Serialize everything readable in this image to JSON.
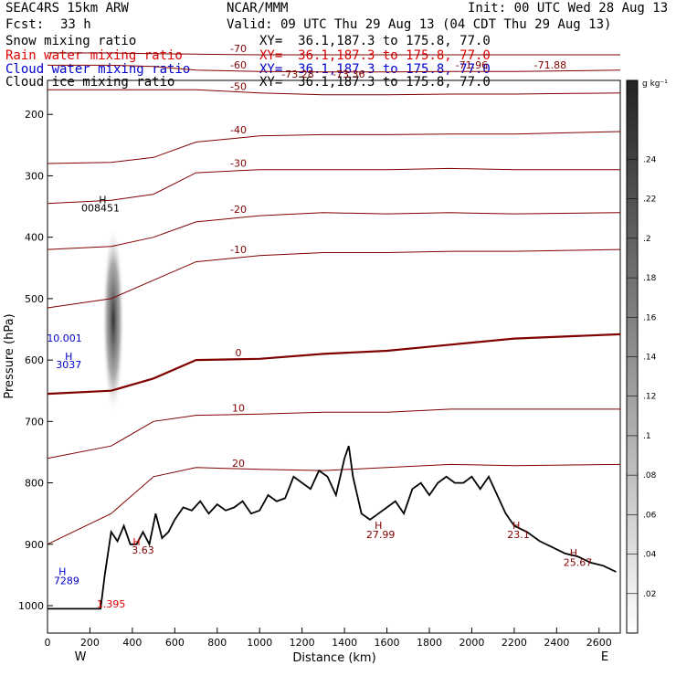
{
  "header": {
    "model": "SEAC4RS 15km ARW",
    "org": "NCAR/MMM",
    "init": "Init: 00 UTC Wed 28 Aug 13",
    "fcst_label": "Fcst:",
    "fcst_value": "33 h",
    "valid": "Valid: 09 UTC Thu 29 Aug 13 (04 CDT Thu 29 Aug 13)"
  },
  "fields": [
    {
      "name": "Snow mixing ratio",
      "xy": "XY=  36.1,187.3 to 175.8, 77.0",
      "color": "#000000"
    },
    {
      "name": "Rain water mixing ratio",
      "xy": "XY=  36.1,187.3 to 175.8, 77.0",
      "color": "#e00000"
    },
    {
      "name": "Cloud water mixing ratio",
      "xy": "XY=  36.1,187.3 to 175.8, 77.0",
      "color": "#0000cc"
    },
    {
      "name": "Cloud ice mixing ratio",
      "xy": "XY=  36.1,187.3 to 175.8, 77.0",
      "color": "#000000"
    }
  ],
  "colorbar": {
    "unit": "g kg⁻¹",
    "ticks": [
      ".02",
      ".04",
      ".06",
      ".08",
      ".1",
      ".12",
      ".14",
      ".16",
      ".18",
      ".2",
      ".22",
      ".24"
    ],
    "range": [
      0,
      0.28
    ]
  },
  "chart_data": {
    "type": "line",
    "xlabel": "Distance (km)",
    "ylabel": "Pressure (hPa)",
    "xlim": [
      0,
      2700
    ],
    "ylim": [
      1000,
      100
    ],
    "x_ticks": [
      0,
      200,
      400,
      600,
      800,
      1000,
      1200,
      1400,
      1600,
      1800,
      2000,
      2200,
      2400,
      2600
    ],
    "y_ticks": [
      200,
      300,
      400,
      500,
      600,
      700,
      800,
      900,
      1000
    ],
    "endpoints": {
      "left": "W",
      "right": "E"
    },
    "terrain": {
      "color": "#000000",
      "x": [
        0,
        250,
        270,
        300,
        330,
        360,
        390,
        420,
        450,
        480,
        510,
        540,
        570,
        600,
        640,
        680,
        720,
        760,
        800,
        840,
        880,
        920,
        960,
        1000,
        1040,
        1080,
        1120,
        1160,
        1200,
        1240,
        1280,
        1320,
        1360,
        1400,
        1420,
        1440,
        1480,
        1520,
        1560,
        1600,
        1640,
        1680,
        1720,
        1760,
        1800,
        1840,
        1880,
        1920,
        1960,
        2000,
        2040,
        2080,
        2120,
        2160,
        2200,
        2260,
        2320,
        2380,
        2440,
        2500,
        2560,
        2620,
        2680
      ],
      "p": [
        1005,
        1005,
        950,
        880,
        895,
        870,
        900,
        900,
        880,
        900,
        850,
        890,
        880,
        860,
        840,
        845,
        830,
        850,
        835,
        845,
        840,
        830,
        850,
        845,
        820,
        830,
        825,
        790,
        800,
        810,
        780,
        790,
        820,
        760,
        740,
        790,
        850,
        860,
        850,
        840,
        830,
        850,
        810,
        800,
        820,
        800,
        790,
        800,
        800,
        790,
        810,
        790,
        820,
        850,
        870,
        880,
        895,
        905,
        915,
        920,
        930,
        935,
        945
      ]
    },
    "temperature_contours": [
      {
        "level": -70,
        "label": "-70",
        "color": "#800000",
        "p": [
          100,
          100,
          101,
          102,
          103,
          103,
          103,
          103,
          103,
          103
        ]
      },
      {
        "level": -60,
        "label": "-60",
        "color": "#800000",
        "p": [
          120,
          120,
          122,
          128,
          130,
          131,
          131,
          130,
          130,
          128
        ]
      },
      {
        "level": -50,
        "label": "-50",
        "color": "#800000",
        "p": [
          160,
          160,
          160,
          160,
          165,
          168,
          168,
          167,
          167,
          165
        ]
      },
      {
        "level": -40,
        "label": "-40",
        "color": "#800000",
        "p": [
          280,
          278,
          270,
          245,
          235,
          233,
          233,
          232,
          232,
          228
        ]
      },
      {
        "level": -30,
        "label": "-30",
        "color": "#800000",
        "p": [
          345,
          340,
          330,
          295,
          290,
          290,
          290,
          288,
          290,
          290
        ]
      },
      {
        "level": -20,
        "label": "-20",
        "color": "#800000",
        "p": [
          420,
          415,
          400,
          375,
          365,
          360,
          362,
          360,
          362,
          360
        ]
      },
      {
        "level": -10,
        "label": "-10",
        "color": "#800000",
        "p": [
          515,
          500,
          470,
          440,
          430,
          425,
          425,
          423,
          423,
          420
        ]
      },
      {
        "level": 0,
        "label": "0",
        "color": "#800000",
        "p": [
          655,
          650,
          630,
          600,
          598,
          590,
          585,
          575,
          565,
          558
        ]
      },
      {
        "level": 10,
        "label": "10",
        "color": "#800000",
        "p": [
          760,
          740,
          700,
          690,
          688,
          685,
          685,
          680,
          680,
          680
        ]
      },
      {
        "level": 20,
        "label": "20",
        "color": "#800000",
        "p": [
          900,
          850,
          790,
          775,
          778,
          780,
          775,
          770,
          772,
          770
        ]
      }
    ],
    "contour_x": [
      0,
      300,
      500,
      700,
      1000,
      1300,
      1600,
      1900,
      2200,
      2700
    ],
    "snow_shading": {
      "x": 310,
      "p_top": 380,
      "p_bottom": 690,
      "peak_value": 0.24
    },
    "annotations": [
      {
        "text": "-73.28",
        "x": 1180,
        "p": 140,
        "color": "#800000"
      },
      {
        "text": "-73.36",
        "x": 1420,
        "p": 140,
        "color": "#800000"
      },
      {
        "text": "-71.96",
        "x": 2000,
        "p": 125,
        "color": "#800000"
      },
      {
        "text": "-71.88",
        "x": 2370,
        "p": 125,
        "color": "#800000"
      },
      {
        "text": "H",
        "x": 260,
        "p": 345,
        "color": "#000000"
      },
      {
        "text": "008451",
        "x": 250,
        "p": 358,
        "color": "#000000"
      },
      {
        "text": "10.001",
        "x": 80,
        "p": 570,
        "color": "#0000cc"
      },
      {
        "text": "H",
        "x": 100,
        "p": 600,
        "color": "#0000cc"
      },
      {
        "text": "3037",
        "x": 100,
        "p": 613,
        "color": "#0000cc"
      },
      {
        "text": "H",
        "x": 70,
        "p": 950,
        "color": "#0000cc"
      },
      {
        "text": "7289",
        "x": 90,
        "p": 965,
        "color": "#0000cc"
      },
      {
        "text": "1.395",
        "x": 300,
        "p": 1003,
        "color": "#e00000"
      },
      {
        "text": "H",
        "x": 420,
        "p": 902,
        "color": "#e00000"
      },
      {
        "text": "3.63",
        "x": 450,
        "p": 915,
        "color": "#800000"
      },
      {
        "text": "H",
        "x": 1560,
        "p": 875,
        "color": "#800000"
      },
      {
        "text": "27.99",
        "x": 1570,
        "p": 890,
        "color": "#800000"
      },
      {
        "text": "H",
        "x": 2210,
        "p": 875,
        "color": "#800000"
      },
      {
        "text": "23.1",
        "x": 2220,
        "p": 890,
        "color": "#800000"
      },
      {
        "text": "H",
        "x": 2480,
        "p": 920,
        "color": "#800000"
      },
      {
        "text": "25.67",
        "x": 2500,
        "p": 935,
        "color": "#800000"
      }
    ]
  }
}
